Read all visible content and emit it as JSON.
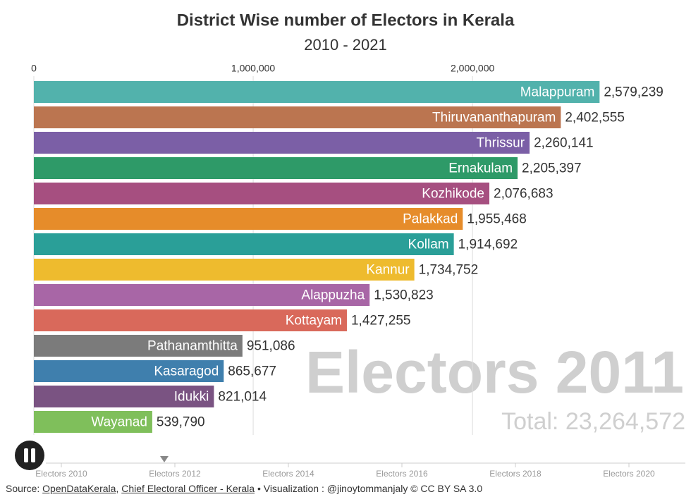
{
  "chart_data": {
    "type": "hbar",
    "title": "District Wise number of Electors in Kerala",
    "subtitle": "2010 - 2021",
    "categories": [
      "Malappuram",
      "Thiruvananthapuram",
      "Thrissur",
      "Ernakulam",
      "Kozhikode",
      "Palakkad",
      "Kollam",
      "Kannur",
      "Alappuzha",
      "Kottayam",
      "Pathanamthitta",
      "Kasaragod",
      "Idukki",
      "Wayanad"
    ],
    "values": [
      2579239,
      2402555,
      2260141,
      2205397,
      2076683,
      1955468,
      1914692,
      1734752,
      1530823,
      1427255,
      951086,
      865677,
      821014,
      539790
    ],
    "value_labels": [
      "2,579,239",
      "2,402,555",
      "2,260,141",
      "2,205,397",
      "2,076,683",
      "1,955,468",
      "1,914,692",
      "1,734,752",
      "1,530,823",
      "1,427,255",
      "951,086",
      "865,677",
      "821,014",
      "539,790"
    ],
    "colors": [
      "#52b2ac",
      "#bb7550",
      "#7b5fa6",
      "#2e9a68",
      "#a64f80",
      "#e68c2a",
      "#2a9f98",
      "#eebb2e",
      "#a866a6",
      "#d9695b",
      "#7b7b7b",
      "#3f7fad",
      "#7a5382",
      "#7fbf5b"
    ],
    "xlim": [
      0,
      2980000
    ],
    "xticks": [
      0,
      {
        "value": 1000000,
        "label": "1,000,000"
      },
      {
        "value": 2000000,
        "label": "2,000,000"
      }
    ],
    "grid": true,
    "watermark": "Electors 2011",
    "total": "Total: 23,264,572"
  },
  "timeline": {
    "labels": [
      "Electors 2010",
      "Electors 2012",
      "Electors 2014",
      "Electors 2016",
      "Electors 2018",
      "Electors 2020"
    ]
  },
  "source": {
    "prefix": "Source:",
    "links": [
      "OpenDataKerala",
      "Chief Electoral Officer - Kerala"
    ],
    "separator": ",",
    "suffix": "• Visualization : @jinoytommanjaly © CC BY SA 3.0"
  }
}
